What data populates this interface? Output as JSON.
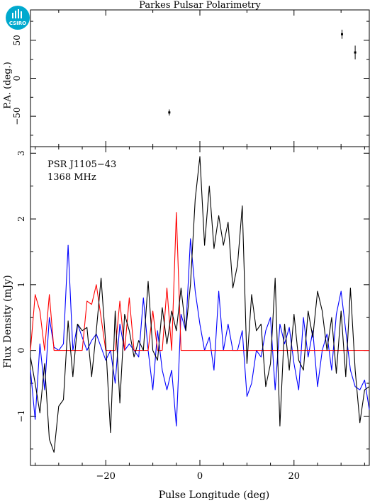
{
  "brand": {
    "logo_text": "CSIRO",
    "logo_color": "#00a9ce"
  },
  "chart_data": [
    {
      "type": "scatter",
      "title": "Parkes Pulsar Polarimetry",
      "ylabel": "P.A. (deg.)",
      "xlim": [
        -36,
        36
      ],
      "ylim": [
        -90,
        90
      ],
      "yticks": [
        -50,
        0,
        50
      ],
      "points": [
        {
          "x": -6.5,
          "y": -45,
          "err": 4
        },
        {
          "x": 30.2,
          "y": 58,
          "err": 6
        },
        {
          "x": 33.0,
          "y": 34,
          "err": 9
        }
      ]
    },
    {
      "type": "line",
      "xlabel": "Pulse Longitude (deg)",
      "ylabel": "Flux Density (mJy)",
      "xlim": [
        -36,
        36
      ],
      "ylim": [
        -1.75,
        3.1
      ],
      "xticks": [
        -20,
        0,
        20
      ],
      "yticks": [
        -1,
        0,
        1,
        2,
        3
      ],
      "annotations": [
        "PSR J1105−43",
        "1368 MHz"
      ],
      "x": [
        -36.0,
        -35.0,
        -34.0,
        -33.0,
        -32.0,
        -31.0,
        -30.0,
        -29.0,
        -28.0,
        -27.0,
        -26.0,
        -25.0,
        -24.0,
        -23.0,
        -22.0,
        -21.0,
        -20.0,
        -19.0,
        -18.0,
        -17.0,
        -16.0,
        -15.0,
        -14.0,
        -13.0,
        -12.0,
        -11.0,
        -10.0,
        -9.0,
        -8.0,
        -7.0,
        -6.0,
        -5.0,
        -4.0,
        -3.0,
        -2.0,
        -1.0,
        0.0,
        1.0,
        2.0,
        3.0,
        4.0,
        5.0,
        6.0,
        7.0,
        8.0,
        9.0,
        10.0,
        11.0,
        12.0,
        13.0,
        14.0,
        15.0,
        16.0,
        17.0,
        18.0,
        19.0,
        20.0,
        21.0,
        22.0,
        23.0,
        24.0,
        25.0,
        26.0,
        27.0,
        28.0,
        29.0,
        30.0,
        31.0,
        32.0,
        33.0,
        34.0,
        35.0,
        36.0
      ],
      "series": [
        {
          "color": "#000000",
          "values": [
            -0.1,
            -0.5,
            -0.95,
            -0.2,
            -1.35,
            -1.55,
            -0.85,
            -0.75,
            0.45,
            -0.4,
            0.4,
            0.3,
            0.35,
            -0.4,
            0.3,
            1.1,
            0.1,
            -1.25,
            0.6,
            -0.8,
            0.55,
            0.3,
            -0.1,
            0.15,
            0.0,
            1.05,
            0.0,
            -0.15,
            0.65,
            0.1,
            0.6,
            0.3,
            0.95,
            0.3,
            1.0,
            2.3,
            2.95,
            1.6,
            2.5,
            1.55,
            2.05,
            1.6,
            1.95,
            0.95,
            1.3,
            2.2,
            -0.2,
            0.85,
            0.3,
            0.4,
            -0.55,
            -0.2,
            1.1,
            -1.15,
            0.4,
            -0.3,
            0.55,
            -0.15,
            -0.3,
            0.6,
            0.2,
            0.9,
            0.6,
            0.0,
            0.5,
            -0.35,
            0.6,
            -0.4,
            0.95,
            -0.3,
            -1.1,
            -0.6,
            -0.55
          ]
        },
        {
          "color": "#ff0000",
          "values": [
            0.0,
            0.85,
            0.6,
            0.0,
            0.85,
            0.0,
            0.0,
            0.0,
            0.0,
            0.0,
            0.0,
            0.0,
            0.75,
            0.7,
            1.0,
            0.5,
            0.0,
            0.0,
            0.0,
            0.75,
            0.0,
            0.8,
            0.0,
            0.0,
            0.0,
            0.0,
            0.6,
            0.0,
            0.0,
            0.95,
            0.0,
            2.1,
            0.0,
            0.0,
            0.0,
            0.0,
            0.0,
            0.0,
            0.0,
            0.0,
            0.0,
            0.0,
            0.0,
            0.0,
            0.0,
            0.0,
            0.0,
            0.0,
            0.0,
            0.0,
            0.0,
            0.0,
            0.0,
            0.0,
            0.0,
            0.0,
            0.0,
            0.0,
            0.0,
            0.0,
            0.0,
            0.0,
            0.0,
            0.0,
            0.0,
            0.0,
            0.0,
            0.0,
            0.0,
            0.0,
            0.0,
            0.0,
            0.0
          ]
        },
        {
          "color": "#0000ff",
          "values": [
            -0.3,
            -1.05,
            0.1,
            -0.6,
            0.5,
            0.05,
            0.0,
            0.1,
            1.6,
            0.0,
            0.4,
            0.2,
            0.0,
            0.15,
            0.25,
            0.05,
            -0.15,
            0.0,
            -0.5,
            0.4,
            0.0,
            0.1,
            0.0,
            -0.1,
            0.8,
            0.0,
            -0.6,
            0.3,
            -0.3,
            -0.6,
            -0.3,
            -1.15,
            0.55,
            0.3,
            1.7,
            0.9,
            0.4,
            0.0,
            0.2,
            -0.3,
            0.9,
            0.0,
            0.4,
            0.0,
            0.0,
            0.3,
            -0.7,
            -0.5,
            0.0,
            -0.1,
            0.3,
            0.5,
            -0.6,
            0.4,
            0.1,
            0.35,
            -0.2,
            -0.6,
            0.5,
            -0.1,
            0.3,
            -0.55,
            0.0,
            0.25,
            -0.3,
            0.55,
            0.9,
            0.3,
            -0.3,
            -0.55,
            -0.6,
            -0.45,
            -0.9
          ]
        }
      ]
    }
  ]
}
